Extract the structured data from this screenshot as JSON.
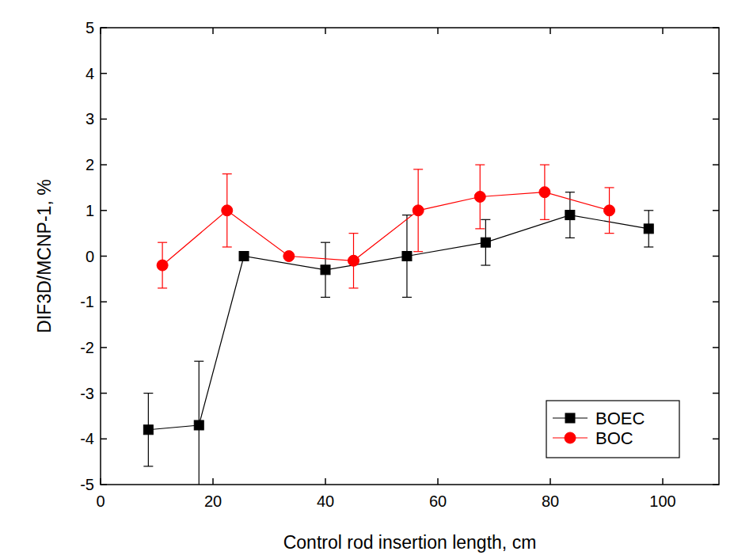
{
  "chart_data": {
    "type": "line",
    "x_label": "Control rod insertion length, cm",
    "y_label": "DIF3D/MCNP-1, %",
    "xlim": [
      0,
      110
    ],
    "xticks": [
      0,
      20,
      40,
      60,
      80,
      100
    ],
    "ylim": [
      -5,
      5
    ],
    "yticks": [
      -5,
      -4,
      -3,
      -2,
      -1,
      0,
      1,
      2,
      3,
      4,
      5
    ],
    "grid": false,
    "legend": "lower right",
    "series": [
      {
        "name": "BOEC",
        "color": "#000000",
        "marker": "square",
        "line_style": "solid",
        "x": [
          8.5,
          17.5,
          25.5,
          40,
          54.5,
          68.5,
          83.5,
          97.5
        ],
        "values": [
          -3.8,
          -3.7,
          0.0,
          -0.3,
          0.0,
          0.3,
          0.9,
          0.6
        ],
        "errors": [
          0.8,
          1.4,
          0,
          0.6,
          0.9,
          0.5,
          0.5,
          0.4
        ]
      },
      {
        "name": "BOC",
        "color": "#ff0000",
        "marker": "circle",
        "line_style": "solid",
        "x": [
          11,
          22.5,
          33.5,
          45,
          56.5,
          67.5,
          79,
          90.5
        ],
        "values": [
          -0.2,
          1.0,
          0.0,
          -0.1,
          1.0,
          1.3,
          1.4,
          1.0
        ],
        "errors": [
          0.5,
          0.8,
          0,
          0.6,
          0.9,
          0.7,
          0.6,
          0.5
        ]
      }
    ]
  }
}
